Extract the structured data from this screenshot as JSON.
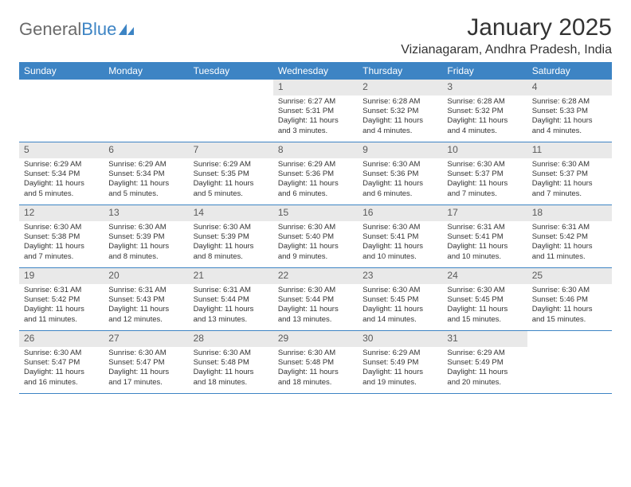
{
  "logo": {
    "text_general": "General",
    "text_blue": "Blue"
  },
  "title": "January 2025",
  "location": "Vizianagaram, Andhra Pradesh, India",
  "day_headers": [
    "Sunday",
    "Monday",
    "Tuesday",
    "Wednesday",
    "Thursday",
    "Friday",
    "Saturday"
  ],
  "colors": {
    "header_bg": "#3d84c4",
    "daynum_bg": "#e9e9e9",
    "text": "#333333",
    "logo_gray": "#6a6a6a",
    "logo_blue": "#3d84c4",
    "rule": "#3d84c4"
  },
  "weeks": [
    [
      null,
      null,
      null,
      {
        "n": "1",
        "sr": "Sunrise: 6:27 AM",
        "ss": "Sunset: 5:31 PM",
        "d1": "Daylight: 11 hours",
        "d2": "and 3 minutes."
      },
      {
        "n": "2",
        "sr": "Sunrise: 6:28 AM",
        "ss": "Sunset: 5:32 PM",
        "d1": "Daylight: 11 hours",
        "d2": "and 4 minutes."
      },
      {
        "n": "3",
        "sr": "Sunrise: 6:28 AM",
        "ss": "Sunset: 5:32 PM",
        "d1": "Daylight: 11 hours",
        "d2": "and 4 minutes."
      },
      {
        "n": "4",
        "sr": "Sunrise: 6:28 AM",
        "ss": "Sunset: 5:33 PM",
        "d1": "Daylight: 11 hours",
        "d2": "and 4 minutes."
      }
    ],
    [
      {
        "n": "5",
        "sr": "Sunrise: 6:29 AM",
        "ss": "Sunset: 5:34 PM",
        "d1": "Daylight: 11 hours",
        "d2": "and 5 minutes."
      },
      {
        "n": "6",
        "sr": "Sunrise: 6:29 AM",
        "ss": "Sunset: 5:34 PM",
        "d1": "Daylight: 11 hours",
        "d2": "and 5 minutes."
      },
      {
        "n": "7",
        "sr": "Sunrise: 6:29 AM",
        "ss": "Sunset: 5:35 PM",
        "d1": "Daylight: 11 hours",
        "d2": "and 5 minutes."
      },
      {
        "n": "8",
        "sr": "Sunrise: 6:29 AM",
        "ss": "Sunset: 5:36 PM",
        "d1": "Daylight: 11 hours",
        "d2": "and 6 minutes."
      },
      {
        "n": "9",
        "sr": "Sunrise: 6:30 AM",
        "ss": "Sunset: 5:36 PM",
        "d1": "Daylight: 11 hours",
        "d2": "and 6 minutes."
      },
      {
        "n": "10",
        "sr": "Sunrise: 6:30 AM",
        "ss": "Sunset: 5:37 PM",
        "d1": "Daylight: 11 hours",
        "d2": "and 7 minutes."
      },
      {
        "n": "11",
        "sr": "Sunrise: 6:30 AM",
        "ss": "Sunset: 5:37 PM",
        "d1": "Daylight: 11 hours",
        "d2": "and 7 minutes."
      }
    ],
    [
      {
        "n": "12",
        "sr": "Sunrise: 6:30 AM",
        "ss": "Sunset: 5:38 PM",
        "d1": "Daylight: 11 hours",
        "d2": "and 7 minutes."
      },
      {
        "n": "13",
        "sr": "Sunrise: 6:30 AM",
        "ss": "Sunset: 5:39 PM",
        "d1": "Daylight: 11 hours",
        "d2": "and 8 minutes."
      },
      {
        "n": "14",
        "sr": "Sunrise: 6:30 AM",
        "ss": "Sunset: 5:39 PM",
        "d1": "Daylight: 11 hours",
        "d2": "and 8 minutes."
      },
      {
        "n": "15",
        "sr": "Sunrise: 6:30 AM",
        "ss": "Sunset: 5:40 PM",
        "d1": "Daylight: 11 hours",
        "d2": "and 9 minutes."
      },
      {
        "n": "16",
        "sr": "Sunrise: 6:30 AM",
        "ss": "Sunset: 5:41 PM",
        "d1": "Daylight: 11 hours",
        "d2": "and 10 minutes."
      },
      {
        "n": "17",
        "sr": "Sunrise: 6:31 AM",
        "ss": "Sunset: 5:41 PM",
        "d1": "Daylight: 11 hours",
        "d2": "and 10 minutes."
      },
      {
        "n": "18",
        "sr": "Sunrise: 6:31 AM",
        "ss": "Sunset: 5:42 PM",
        "d1": "Daylight: 11 hours",
        "d2": "and 11 minutes."
      }
    ],
    [
      {
        "n": "19",
        "sr": "Sunrise: 6:31 AM",
        "ss": "Sunset: 5:42 PM",
        "d1": "Daylight: 11 hours",
        "d2": "and 11 minutes."
      },
      {
        "n": "20",
        "sr": "Sunrise: 6:31 AM",
        "ss": "Sunset: 5:43 PM",
        "d1": "Daylight: 11 hours",
        "d2": "and 12 minutes."
      },
      {
        "n": "21",
        "sr": "Sunrise: 6:31 AM",
        "ss": "Sunset: 5:44 PM",
        "d1": "Daylight: 11 hours",
        "d2": "and 13 minutes."
      },
      {
        "n": "22",
        "sr": "Sunrise: 6:30 AM",
        "ss": "Sunset: 5:44 PM",
        "d1": "Daylight: 11 hours",
        "d2": "and 13 minutes."
      },
      {
        "n": "23",
        "sr": "Sunrise: 6:30 AM",
        "ss": "Sunset: 5:45 PM",
        "d1": "Daylight: 11 hours",
        "d2": "and 14 minutes."
      },
      {
        "n": "24",
        "sr": "Sunrise: 6:30 AM",
        "ss": "Sunset: 5:45 PM",
        "d1": "Daylight: 11 hours",
        "d2": "and 15 minutes."
      },
      {
        "n": "25",
        "sr": "Sunrise: 6:30 AM",
        "ss": "Sunset: 5:46 PM",
        "d1": "Daylight: 11 hours",
        "d2": "and 15 minutes."
      }
    ],
    [
      {
        "n": "26",
        "sr": "Sunrise: 6:30 AM",
        "ss": "Sunset: 5:47 PM",
        "d1": "Daylight: 11 hours",
        "d2": "and 16 minutes."
      },
      {
        "n": "27",
        "sr": "Sunrise: 6:30 AM",
        "ss": "Sunset: 5:47 PM",
        "d1": "Daylight: 11 hours",
        "d2": "and 17 minutes."
      },
      {
        "n": "28",
        "sr": "Sunrise: 6:30 AM",
        "ss": "Sunset: 5:48 PM",
        "d1": "Daylight: 11 hours",
        "d2": "and 18 minutes."
      },
      {
        "n": "29",
        "sr": "Sunrise: 6:30 AM",
        "ss": "Sunset: 5:48 PM",
        "d1": "Daylight: 11 hours",
        "d2": "and 18 minutes."
      },
      {
        "n": "30",
        "sr": "Sunrise: 6:29 AM",
        "ss": "Sunset: 5:49 PM",
        "d1": "Daylight: 11 hours",
        "d2": "and 19 minutes."
      },
      {
        "n": "31",
        "sr": "Sunrise: 6:29 AM",
        "ss": "Sunset: 5:49 PM",
        "d1": "Daylight: 11 hours",
        "d2": "and 20 minutes."
      },
      null
    ]
  ]
}
